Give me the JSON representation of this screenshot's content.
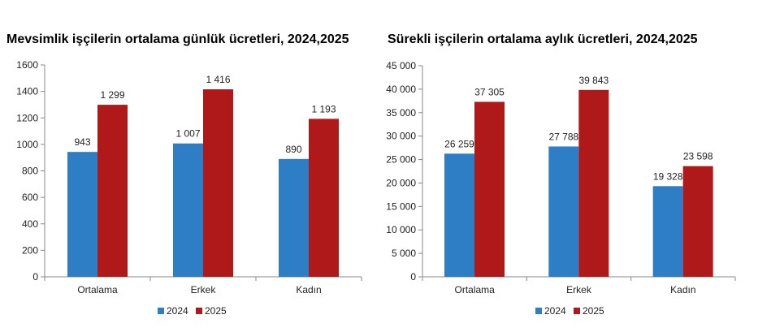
{
  "chart_data": [
    {
      "type": "bar",
      "title": "Mevsimlik işçilerin ortalama günlük ücretleri, 2024,2025",
      "categories": [
        "Ortalama",
        "Erkek",
        "Kadın"
      ],
      "series": [
        {
          "name": "2024",
          "values": [
            943,
            1007,
            890
          ],
          "labels": [
            "943",
            "1 007",
            "890"
          ],
          "color": "#2E7EC6"
        },
        {
          "name": "2025",
          "values": [
            1299,
            1416,
            1193
          ],
          "labels": [
            "1 299",
            "1 416",
            "1 193"
          ],
          "color": "#B0191A"
        }
      ],
      "ylim": [
        0,
        1600
      ],
      "yticks": [
        0,
        200,
        400,
        600,
        800,
        1000,
        1200,
        1400,
        1600
      ],
      "ytick_labels": [
        "0",
        "200",
        "400",
        "600",
        "800",
        "1000",
        "1200",
        "1400",
        "1600"
      ],
      "xlabel": "",
      "ylabel": "",
      "grid": false,
      "legend": "bottom"
    },
    {
      "type": "bar",
      "title": "Sürekli işçilerin ortalama aylık ücretleri, 2024,2025",
      "categories": [
        "Ortalama",
        "Erkek",
        "Kadın"
      ],
      "series": [
        {
          "name": "2024",
          "values": [
            26259,
            27788,
            19328
          ],
          "labels": [
            "26 259",
            "27 788",
            "19 328"
          ],
          "color": "#2E7EC6"
        },
        {
          "name": "2025",
          "values": [
            37305,
            39843,
            23598
          ],
          "labels": [
            "37 305",
            "39 843",
            "23 598"
          ],
          "color": "#B0191A"
        }
      ],
      "ylim": [
        0,
        45000
      ],
      "yticks": [
        0,
        5000,
        10000,
        15000,
        20000,
        25000,
        30000,
        35000,
        40000,
        45000
      ],
      "ytick_labels": [
        "0",
        "5 000",
        "10 000",
        "15 000",
        "20 000",
        "25 000",
        "30 000",
        "35 000",
        "40 000",
        "45 000"
      ],
      "xlabel": "",
      "ylabel": "",
      "grid": false,
      "legend": "bottom"
    }
  ]
}
